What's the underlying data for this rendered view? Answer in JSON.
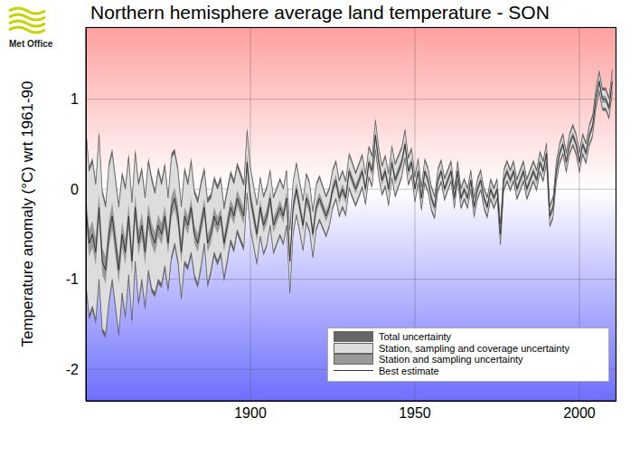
{
  "chart_data": {
    "type": "line",
    "title": "Northern hemisphere average land temperature - SON",
    "logo_text": "Met Office",
    "y_label": "Temperature anomaly (°C) wrt 1961-90",
    "x": [
      1850,
      1851,
      1852,
      1853,
      1854,
      1855,
      1856,
      1857,
      1858,
      1859,
      1860,
      1861,
      1862,
      1863,
      1864,
      1865,
      1866,
      1867,
      1868,
      1869,
      1870,
      1871,
      1872,
      1873,
      1874,
      1875,
      1876,
      1877,
      1878,
      1879,
      1880,
      1881,
      1882,
      1883,
      1884,
      1885,
      1886,
      1887,
      1888,
      1889,
      1890,
      1891,
      1892,
      1893,
      1894,
      1895,
      1896,
      1897,
      1898,
      1899,
      1900,
      1901,
      1902,
      1903,
      1904,
      1905,
      1906,
      1907,
      1908,
      1909,
      1910,
      1911,
      1912,
      1913,
      1914,
      1915,
      1916,
      1917,
      1918,
      1919,
      1920,
      1921,
      1922,
      1923,
      1924,
      1925,
      1926,
      1927,
      1928,
      1929,
      1930,
      1931,
      1932,
      1933,
      1934,
      1935,
      1936,
      1937,
      1938,
      1939,
      1940,
      1941,
      1942,
      1943,
      1944,
      1945,
      1946,
      1947,
      1948,
      1949,
      1950,
      1951,
      1952,
      1953,
      1954,
      1955,
      1956,
      1957,
      1958,
      1959,
      1960,
      1961,
      1962,
      1963,
      1964,
      1965,
      1966,
      1967,
      1968,
      1969,
      1970,
      1971,
      1972,
      1973,
      1974,
      1975,
      1976,
      1977,
      1978,
      1979,
      1980,
      1981,
      1982,
      1983,
      1984,
      1985,
      1986,
      1987,
      1988,
      1989,
      1990,
      1991,
      1992,
      1993,
      1994,
      1995,
      1996,
      1997,
      1998,
      1999,
      2000,
      2001,
      2002,
      2003,
      2004,
      2005,
      2006,
      2007,
      2008,
      2009,
      2010
    ],
    "series": [
      {
        "name": "Best estimate",
        "color": "#333333",
        "values": [
          -0.2,
          -0.6,
          -0.5,
          -0.7,
          -0.2,
          -0.8,
          -0.9,
          -0.5,
          -0.3,
          -0.6,
          -0.9,
          -0.5,
          -0.7,
          -0.3,
          -0.8,
          -0.2,
          -0.6,
          -0.4,
          -0.7,
          -0.3,
          -0.5,
          -0.6,
          -0.4,
          -0.5,
          -0.3,
          -0.6,
          -0.2,
          -0.1,
          -0.3,
          -0.7,
          -0.3,
          -0.4,
          -0.2,
          -0.5,
          -0.6,
          -0.4,
          -0.2,
          -0.6,
          -0.5,
          -0.3,
          -0.4,
          -0.3,
          -0.6,
          -0.4,
          -0.2,
          -0.3,
          -0.1,
          -0.2,
          -0.3,
          0.3,
          -0.1,
          -0.3,
          -0.5,
          -0.2,
          -0.4,
          -0.3,
          -0.1,
          -0.4,
          -0.3,
          -0.2,
          -0.3,
          -0.1,
          -0.8,
          -0.2,
          0.0,
          -0.2,
          -0.4,
          -0.1,
          -0.2,
          -0.5,
          -0.2,
          -0.1,
          -0.2,
          -0.3,
          -0.2,
          0.0,
          0.1,
          -0.1,
          0.0,
          -0.1,
          0.2,
          0.1,
          0.0,
          0.1,
          0.2,
          0.0,
          0.3,
          0.2,
          0.6,
          0.3,
          0.1,
          0.2,
          0.0,
          0.3,
          0.1,
          0.2,
          0.3,
          0.5,
          0.2,
          0.3,
          0.0,
          0.2,
          -0.1,
          0.2,
          0.1,
          -0.1,
          -0.2,
          0.1,
          0.2,
          0.0,
          0.1,
          0.2,
          -0.1,
          0.2,
          -0.1,
          0.0,
          -0.1,
          0.1,
          -0.2,
          0.0,
          0.1,
          -0.1,
          -0.2,
          0.0,
          -0.1,
          0.0,
          -0.5,
          0.1,
          0.2,
          0.1,
          0.2,
          0.0,
          0.1,
          0.2,
          0.0,
          0.1,
          0.2,
          0.1,
          0.3,
          0.2,
          0.4,
          -0.3,
          -0.2,
          0.2,
          0.4,
          0.5,
          0.3,
          0.5,
          0.6,
          0.5,
          0.3,
          0.5,
          0.4,
          0.6,
          0.7,
          1.0,
          1.2,
          1.0,
          1.0,
          0.9,
          1.2
        ]
      }
    ],
    "bands": [
      {
        "name": "Total uncertainty",
        "color": "#666666",
        "half_width": [
          0.9,
          0.85,
          0.85,
          0.8,
          0.85,
          0.8,
          0.75,
          0.8,
          0.75,
          0.75,
          0.75,
          0.7,
          0.75,
          0.7,
          0.7,
          0.65,
          0.7,
          0.65,
          0.65,
          0.65,
          0.65,
          0.6,
          0.65,
          0.6,
          0.6,
          0.55,
          0.6,
          0.55,
          0.55,
          0.55,
          0.55,
          0.5,
          0.55,
          0.5,
          0.5,
          0.5,
          0.45,
          0.5,
          0.45,
          0.45,
          0.45,
          0.45,
          0.43,
          0.43,
          0.41,
          0.41,
          0.4,
          0.4,
          0.39,
          0.39,
          0.36,
          0.36,
          0.35,
          0.35,
          0.34,
          0.34,
          0.33,
          0.33,
          0.33,
          0.33,
          0.33,
          0.33,
          0.38,
          0.31,
          0.31,
          0.3,
          0.3,
          0.29,
          0.29,
          0.28,
          0.27,
          0.26,
          0.25,
          0.24,
          0.23,
          0.23,
          0.23,
          0.22,
          0.22,
          0.21,
          0.21,
          0.21,
          0.2,
          0.2,
          0.2,
          0.19,
          0.19,
          0.19,
          0.19,
          0.18,
          0.18,
          0.19,
          0.2,
          0.2,
          0.2,
          0.19,
          0.18,
          0.18,
          0.17,
          0.17,
          0.16,
          0.16,
          0.15,
          0.15,
          0.15,
          0.15,
          0.14,
          0.14,
          0.14,
          0.14,
          0.13,
          0.13,
          0.13,
          0.13,
          0.13,
          0.13,
          0.13,
          0.13,
          0.13,
          0.13,
          0.13,
          0.13,
          0.13,
          0.13,
          0.13,
          0.13,
          0.14,
          0.13,
          0.13,
          0.13,
          0.13,
          0.13,
          0.13,
          0.13,
          0.13,
          0.13,
          0.13,
          0.13,
          0.13,
          0.13,
          0.13,
          0.13,
          0.13,
          0.13,
          0.13,
          0.13,
          0.13,
          0.13,
          0.13,
          0.13,
          0.13,
          0.13,
          0.13,
          0.13,
          0.13,
          0.13,
          0.13,
          0.13,
          0.13,
          0.13,
          0.15
        ]
      },
      {
        "name": "Station, sampling and coverage uncertainty",
        "color": "#dddddd",
        "half_width": [
          0.85,
          0.8,
          0.8,
          0.75,
          0.8,
          0.75,
          0.7,
          0.75,
          0.7,
          0.7,
          0.7,
          0.65,
          0.7,
          0.65,
          0.65,
          0.6,
          0.65,
          0.6,
          0.6,
          0.6,
          0.6,
          0.55,
          0.6,
          0.55,
          0.55,
          0.5,
          0.55,
          0.5,
          0.5,
          0.5,
          0.5,
          0.45,
          0.5,
          0.45,
          0.45,
          0.45,
          0.4,
          0.45,
          0.4,
          0.4,
          0.4,
          0.4,
          0.38,
          0.38,
          0.36,
          0.36,
          0.35,
          0.35,
          0.34,
          0.34,
          0.33,
          0.33,
          0.32,
          0.32,
          0.31,
          0.31,
          0.3,
          0.3,
          0.3,
          0.3,
          0.3,
          0.3,
          0.35,
          0.28,
          0.28,
          0.27,
          0.27,
          0.26,
          0.26,
          0.25,
          0.24,
          0.23,
          0.22,
          0.21,
          0.2,
          0.2,
          0.2,
          0.19,
          0.19,
          0.18,
          0.18,
          0.18,
          0.17,
          0.17,
          0.17,
          0.16,
          0.16,
          0.16,
          0.16,
          0.15,
          0.15,
          0.16,
          0.17,
          0.17,
          0.17,
          0.16,
          0.15,
          0.15,
          0.14,
          0.14,
          0.13,
          0.13,
          0.12,
          0.12,
          0.12,
          0.12,
          0.11,
          0.11,
          0.11,
          0.11,
          0.1,
          0.1,
          0.1,
          0.1,
          0.1,
          0.1,
          0.1,
          0.1,
          0.1,
          0.1,
          0.1,
          0.1,
          0.1,
          0.1,
          0.1,
          0.1,
          0.11,
          0.1,
          0.1,
          0.1,
          0.1,
          0.1,
          0.1,
          0.1,
          0.1,
          0.1,
          0.1,
          0.1,
          0.1,
          0.1,
          0.1,
          0.1,
          0.1,
          0.1,
          0.1,
          0.1,
          0.1,
          0.1,
          0.1,
          0.1,
          0.1,
          0.1,
          0.1,
          0.1,
          0.1,
          0.1,
          0.1,
          0.1,
          0.1,
          0.1,
          0.12
        ]
      },
      {
        "name": "Station and sampling uncertainty",
        "color": "#999999",
        "half_width": [
          0.15,
          0.15,
          0.15,
          0.15,
          0.15,
          0.15,
          0.15,
          0.15,
          0.15,
          0.15,
          0.14,
          0.14,
          0.14,
          0.14,
          0.14,
          0.14,
          0.14,
          0.14,
          0.14,
          0.14,
          0.12,
          0.12,
          0.12,
          0.12,
          0.12,
          0.12,
          0.12,
          0.12,
          0.12,
          0.12,
          0.1,
          0.1,
          0.1,
          0.1,
          0.1,
          0.1,
          0.1,
          0.1,
          0.1,
          0.1,
          0.09,
          0.09,
          0.09,
          0.09,
          0.09,
          0.09,
          0.09,
          0.09,
          0.09,
          0.09,
          0.08,
          0.08,
          0.08,
          0.08,
          0.08,
          0.08,
          0.08,
          0.08,
          0.08,
          0.08,
          0.07,
          0.07,
          0.07,
          0.07,
          0.07,
          0.07,
          0.07,
          0.07,
          0.07,
          0.07,
          0.06,
          0.06,
          0.06,
          0.06,
          0.06,
          0.06,
          0.06,
          0.06,
          0.06,
          0.06,
          0.05,
          0.05,
          0.05,
          0.05,
          0.05,
          0.05,
          0.05,
          0.05,
          0.05,
          0.05,
          0.05,
          0.05,
          0.05,
          0.05,
          0.05,
          0.05,
          0.05,
          0.05,
          0.05,
          0.05,
          0.04,
          0.04,
          0.04,
          0.04,
          0.04,
          0.04,
          0.04,
          0.04,
          0.04,
          0.04,
          0.04,
          0.04,
          0.04,
          0.04,
          0.04,
          0.04,
          0.04,
          0.04,
          0.04,
          0.04,
          0.04,
          0.04,
          0.04,
          0.04,
          0.04,
          0.04,
          0.04,
          0.04,
          0.04,
          0.04,
          0.04,
          0.04,
          0.04,
          0.04,
          0.04,
          0.04,
          0.04,
          0.04,
          0.04,
          0.04,
          0.04,
          0.04,
          0.04,
          0.04,
          0.04,
          0.04,
          0.04,
          0.04,
          0.04,
          0.04,
          0.04,
          0.04,
          0.04,
          0.04,
          0.04,
          0.04,
          0.04,
          0.04,
          0.04,
          0.04,
          0.05
        ]
      }
    ],
    "xlim": [
      1850,
      2011
    ],
    "ylim": [
      -2.35,
      1.8
    ],
    "xticks": [
      1900,
      1950,
      2000
    ],
    "yticks": [
      -2,
      -1,
      0,
      1
    ],
    "grid": true,
    "legend": "lower right"
  }
}
